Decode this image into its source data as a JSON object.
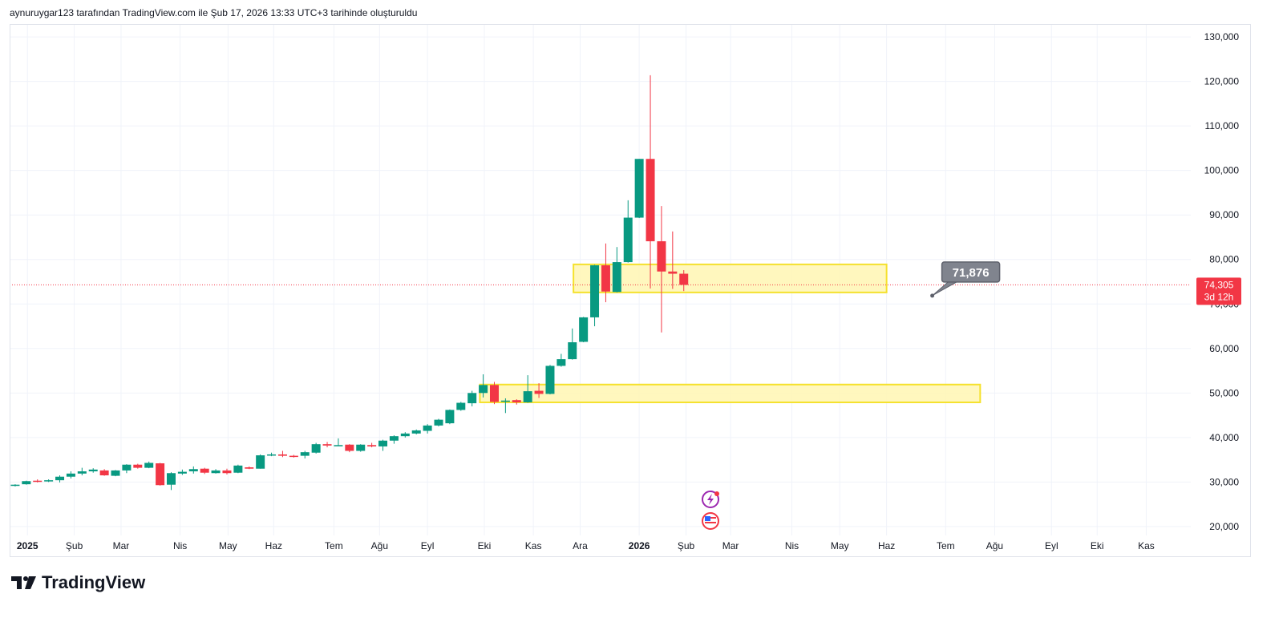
{
  "header": {
    "text": "aynuruygar123 tarafından TradingView.com ile Şub 17, 2026 13:33 UTC+3 tarihinde oluşturuldu"
  },
  "logo": {
    "text": "TradingView"
  },
  "colors": {
    "up": "#089981",
    "down": "#f23645",
    "zone_fill": "#fff6b3",
    "zone_border": "#f5e12c",
    "grid": "#f0f3fa",
    "callout": "#80848e"
  },
  "price_label": {
    "value": "74,305",
    "countdown": "3d 12h"
  },
  "callout": {
    "text": "71,876",
    "index": 82.3,
    "price": 71876
  },
  "chart_data": {
    "type": "candlestick",
    "title": "",
    "xlabel": "",
    "ylabel": "",
    "ylim": [
      18000,
      132900
    ],
    "xlim": [
      -0.5,
      105.5
    ],
    "y_ticks": [
      20000,
      30000,
      40000,
      50000,
      60000,
      70000,
      80000,
      90000,
      100000,
      110000,
      120000,
      130000
    ],
    "y_tick_labels": [
      "20,000",
      "30,000",
      "40,000",
      "50,000",
      "60,000",
      "70,000",
      "80,000",
      "90,000",
      "100,000",
      "110,000",
      "120,000",
      "130,000"
    ],
    "x_ticks": [
      {
        "label": "2025",
        "index": 1.1,
        "bold": true
      },
      {
        "label": "Şub",
        "index": 5.3
      },
      {
        "label": "Mar",
        "index": 9.5
      },
      {
        "label": "Nis",
        "index": 14.8
      },
      {
        "label": "May",
        "index": 19.1
      },
      {
        "label": "Haz",
        "index": 23.2
      },
      {
        "label": "Tem",
        "index": 28.6
      },
      {
        "label": "Ağu",
        "index": 32.7
      },
      {
        "label": "Eyl",
        "index": 37.0
      },
      {
        "label": "Eki",
        "index": 42.1
      },
      {
        "label": "Kas",
        "index": 46.5
      },
      {
        "label": "Ara",
        "index": 50.7
      },
      {
        "label": "2026",
        "index": 56.0,
        "bold": true
      },
      {
        "label": "Şub",
        "index": 60.2
      },
      {
        "label": "Mar",
        "index": 64.2
      },
      {
        "label": "Nis",
        "index": 69.7
      },
      {
        "label": "May",
        "index": 74.0
      },
      {
        "label": "Haz",
        "index": 78.2
      },
      {
        "label": "Tem",
        "index": 83.5
      },
      {
        "label": "Ağu",
        "index": 87.9
      },
      {
        "label": "Eyl",
        "index": 93.0
      },
      {
        "label": "Eki",
        "index": 97.1
      },
      {
        "label": "Kas",
        "index": 101.5
      }
    ],
    "last_price": 74305,
    "zones": [
      {
        "from_index": 50.1,
        "to_index": 78.2,
        "low": 72600,
        "high": 78900
      },
      {
        "from_index": 41.7,
        "to_index": 86.6,
        "low": 47900,
        "high": 51900
      }
    ],
    "ohlc": [
      [
        29.2,
        29.5,
        29.0,
        29.4
      ],
      [
        29.5,
        30.3,
        29.4,
        30.2
      ],
      [
        30.3,
        30.6,
        29.9,
        30.2
      ],
      [
        30.2,
        30.6,
        30.0,
        30.4
      ],
      [
        30.4,
        31.5,
        29.9,
        31.2
      ],
      [
        31.2,
        32.4,
        30.8,
        31.9
      ],
      [
        31.9,
        33.2,
        31.5,
        32.4
      ],
      [
        32.4,
        33.1,
        32.1,
        32.8
      ],
      [
        32.6,
        32.9,
        31.4,
        31.5
      ],
      [
        31.4,
        32.7,
        31.3,
        32.6
      ],
      [
        32.6,
        34.0,
        32.0,
        33.9
      ],
      [
        33.9,
        34.1,
        33.0,
        33.2
      ],
      [
        33.2,
        34.6,
        33.1,
        34.3
      ],
      [
        34.2,
        34.3,
        29.2,
        29.3
      ],
      [
        29.4,
        32.2,
        28.2,
        32.0
      ],
      [
        31.9,
        32.8,
        31.6,
        32.3
      ],
      [
        32.4,
        33.5,
        31.9,
        32.9
      ],
      [
        33.0,
        33.2,
        31.8,
        32.1
      ],
      [
        32.0,
        32.9,
        31.9,
        32.6
      ],
      [
        32.6,
        33.0,
        31.7,
        32.0
      ],
      [
        32.1,
        33.9,
        32.0,
        33.7
      ],
      [
        33.3,
        33.5,
        32.9,
        33.0
      ],
      [
        33.0,
        36.2,
        33.0,
        36.0
      ],
      [
        36.0,
        36.6,
        35.8,
        36.2
      ],
      [
        36.2,
        37.0,
        35.6,
        35.9
      ],
      [
        35.9,
        36.1,
        35.5,
        35.8
      ],
      [
        35.9,
        37.0,
        35.3,
        36.7
      ],
      [
        36.6,
        38.8,
        36.4,
        38.5
      ],
      [
        38.5,
        39.0,
        37.8,
        38.2
      ],
      [
        38.3,
        39.8,
        38.2,
        38.3
      ],
      [
        38.4,
        38.5,
        36.7,
        37.0
      ],
      [
        37.0,
        38.5,
        36.8,
        38.4
      ],
      [
        38.3,
        38.8,
        37.8,
        38.0
      ],
      [
        38.0,
        39.5,
        37.0,
        39.3
      ],
      [
        39.3,
        40.5,
        38.6,
        40.3
      ],
      [
        40.3,
        41.2,
        40.0,
        40.9
      ],
      [
        40.9,
        41.8,
        40.7,
        41.6
      ],
      [
        41.5,
        43.0,
        40.9,
        42.7
      ],
      [
        42.7,
        44.2,
        42.5,
        44.0
      ],
      [
        43.2,
        46.3,
        43.0,
        46.2
      ],
      [
        46.2,
        48.0,
        46.0,
        47.8
      ],
      [
        47.7,
        50.5,
        47.0,
        50.0
      ],
      [
        50.0,
        54.2,
        49.0,
        51.8
      ],
      [
        51.8,
        52.5,
        47.5,
        48.0
      ],
      [
        48.2,
        48.8,
        45.5,
        48.3
      ],
      [
        48.4,
        48.6,
        47.4,
        47.9
      ],
      [
        47.9,
        54.0,
        47.8,
        50.4
      ],
      [
        50.5,
        52.2,
        48.9,
        49.8
      ],
      [
        49.8,
        56.3,
        49.7,
        56.1
      ],
      [
        56.1,
        58.8,
        55.9,
        57.6
      ],
      [
        57.6,
        64.5,
        57.5,
        61.4
      ],
      [
        61.5,
        67.1,
        61.4,
        67.0
      ],
      [
        67.0,
        78.8,
        65.0,
        78.7
      ],
      [
        78.7,
        83.6,
        70.4,
        72.8
      ],
      [
        72.7,
        82.8,
        72.6,
        79.4
      ],
      [
        79.4,
        93.3,
        79.3,
        89.4
      ],
      [
        89.4,
        102.6,
        89.3,
        102.6
      ],
      [
        102.6,
        121.4,
        73.5,
        84.1
      ],
      [
        84.1,
        92.0,
        63.6,
        77.3
      ],
      [
        77.3,
        86.3,
        73.4,
        76.8
      ],
      [
        76.8,
        77.6,
        72.9,
        74.3
      ]
    ],
    "ohlc_units": "thousands"
  }
}
